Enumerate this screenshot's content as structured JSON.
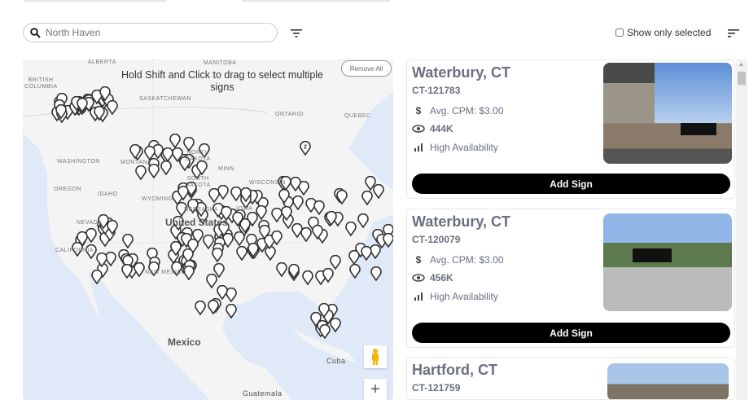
{
  "search": {
    "placeholder": "North Haven",
    "icon": "search-icon"
  },
  "toolbar": {
    "show_only_selected": "Show only selected",
    "show_only_selected_checked": false
  },
  "map": {
    "hint": "Hold Shift and Click to drag to select multiple signs",
    "remove_all": "Remove All",
    "labels": {
      "alberta": "ALBERTA",
      "manitoba": "MANITOBA",
      "bc": "BRITISH COLUMBIA",
      "sask": "SASKATCHEWAN",
      "ontario": "ONTARIO",
      "quebec": "QUEBEC",
      "washington": "WASHINGTON",
      "montana": "MONTANA",
      "nd": "NORTH DAKOTA",
      "minnesota": "MINN",
      "oregon": "OREGON",
      "sd": "SOUTH DAKOTA",
      "wisconsin": "WISCONSIN",
      "idaho": "IDAHO",
      "wyoming": "WYOMING",
      "nebraska": "NEBRASKA",
      "iowa": "IOWA",
      "nevada": "NEVADA",
      "california": "CALIFORNIA",
      "us": "United States",
      "newmexico": "NEW MEXICO",
      "mexico": "Mexico",
      "cuba": "Cuba",
      "guatemala": "Guatemala"
    },
    "cluster_label": "2",
    "zoom_in": "+"
  },
  "colors": {
    "button": "#000000",
    "title": "#6b6f80",
    "ocean": "#dfe9f8",
    "land": "#f4f4f4"
  },
  "signs": [
    {
      "city": "Waterbury, CT",
      "code": "CT-121783",
      "cpm": "Avg. CPM: $3.00",
      "impressions": "444K",
      "availability": "High Availability",
      "button": "Add Sign"
    },
    {
      "city": "Waterbury, CT",
      "code": "CT-120079",
      "cpm": "Avg. CPM: $3.00",
      "impressions": "456K",
      "availability": "High Availability",
      "button": "Add Sign"
    },
    {
      "city": "Hartford, CT",
      "code": "CT-121759"
    }
  ]
}
